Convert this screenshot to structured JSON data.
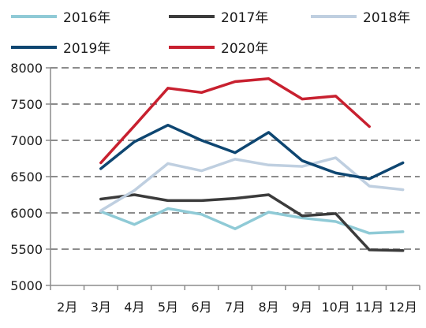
{
  "chart_data": {
    "type": "line",
    "title": "",
    "xlabel": "",
    "ylabel": "",
    "categories": [
      "2月",
      "3月",
      "4月",
      "5月",
      "6月",
      "7月",
      "8月",
      "9月",
      "10月",
      "11月",
      "12月"
    ],
    "ylim": [
      5000,
      8000
    ],
    "yticks": [
      5000,
      5500,
      6000,
      6500,
      7000,
      7500,
      8000
    ],
    "grid": "horizontal-dashed",
    "legend": "top",
    "series": [
      {
        "name": "2016年",
        "color": "#8fcad6",
        "values": [
          null,
          6020,
          5840,
          6060,
          5980,
          5780,
          6010,
          5930,
          5880,
          5720,
          5740
        ]
      },
      {
        "name": "2017年",
        "color": "#3b3b3b",
        "values": [
          null,
          6190,
          6250,
          6170,
          6170,
          6200,
          6250,
          5960,
          5990,
          5490,
          5480
        ]
      },
      {
        "name": "2018年",
        "color": "#bfcfe0",
        "values": [
          null,
          6030,
          6310,
          6680,
          6580,
          6740,
          6660,
          6640,
          6760,
          6370,
          6320
        ]
      },
      {
        "name": "2019年",
        "color": "#0e4671",
        "values": [
          null,
          6610,
          6980,
          7210,
          7000,
          6830,
          7110,
          6720,
          6550,
          6470,
          6690
        ]
      },
      {
        "name": "2020年",
        "color": "#c8202f",
        "values": [
          null,
          6690,
          7200,
          7720,
          7660,
          7810,
          7850,
          7570,
          7610,
          7190,
          null
        ]
      }
    ]
  }
}
